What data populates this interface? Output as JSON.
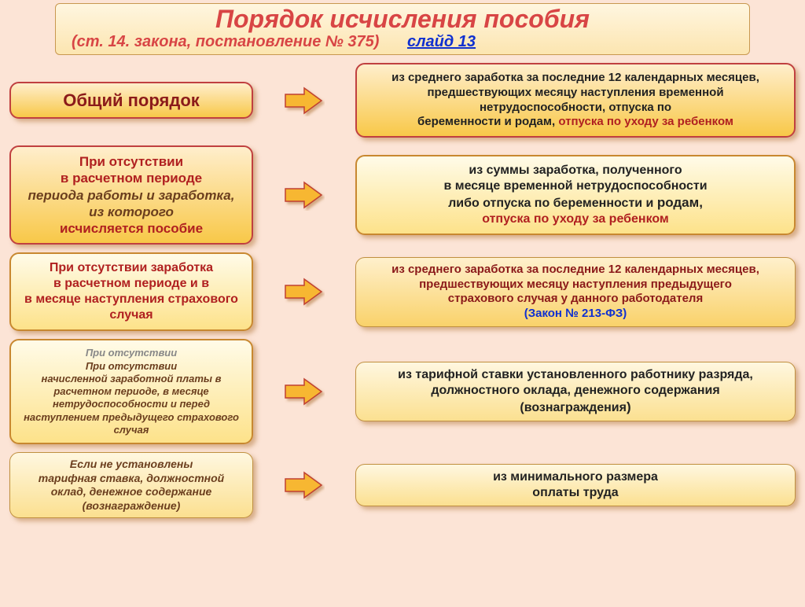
{
  "header": {
    "title": "Порядок исчисления пособия",
    "subtitle_left": "(ст. 14.  закона, постановление № 375)",
    "subtitle_link": "слайд 13",
    "title_color": "#d84545",
    "link_color": "#1030d0",
    "bg_from": "#fff6e0",
    "bg_to": "#fce5b0"
  },
  "arrow": {
    "fill": "#f7b733",
    "stroke": "#c04030",
    "shadow": "rgba(170,110,50,0.5)"
  },
  "rows": [
    {
      "left": {
        "style": "box-a",
        "fontsize": "fs22",
        "lines": [
          {
            "cls": "txt-darkred",
            "text": "Общий порядок"
          }
        ]
      },
      "right": {
        "style": "box-a",
        "fontsize": "fs15",
        "lines": [
          {
            "cls": "txt-black",
            "text": "из среднего заработка  за последние 12 календарных месяцев, предшествующих месяцу наступления временной нетрудоспособности, отпуска по "
          },
          {
            "cls": "",
            "text": "",
            "inline": [
              {
                "cls": "txt-black",
                "text": "беременности и родам, "
              },
              {
                "cls": "txt-red",
                "text": "отпуска по уходу за ребенком"
              }
            ]
          }
        ]
      }
    },
    {
      "left": {
        "style": "box-a",
        "fontsize": "fs17",
        "lines": [
          {
            "cls": "txt-red",
            "text": "При отсутствии"
          },
          {
            "cls": "txt-red",
            "text": "в расчетном периоде"
          },
          {
            "cls": "txt-brown",
            "text": "периода работы и  заработка,"
          },
          {
            "cls": "txt-brown",
            "text": "из которого"
          },
          {
            "cls": "txt-red",
            "text": "исчисляется пособие"
          }
        ]
      },
      "right": {
        "style": "box-b",
        "fontsize": "fs16",
        "lines": [
          {
            "cls": "txt-black",
            "text": "из суммы заработка, полученного"
          },
          {
            "cls": "txt-black",
            "text": "в месяце временной нетрудоспособности"
          },
          {
            "cls": "",
            "text": "",
            "inline": [
              {
                "cls": "txt-black",
                "text": "либо отпуска по беременности и "
              },
              {
                "cls": "txt-black fs17",
                "text": "родам,"
              }
            ]
          },
          {
            "cls": "txt-red",
            "text": "отпуска  по уходу за ребенком"
          }
        ]
      }
    },
    {
      "left": {
        "style": "box-b",
        "fontsize": "fs16",
        "lines": [
          {
            "cls": "txt-red",
            "text": "При отсутствии заработка"
          },
          {
            "cls": "txt-red",
            "text": "в расчетном периоде  и  в"
          },
          {
            "cls": "txt-red",
            "text": "в месяце наступления страхового случая"
          }
        ]
      },
      "right": {
        "style": "box-c",
        "fontsize": "fs15",
        "lines": [
          {
            "cls": "txt-darkred",
            "text": "из  среднего  заработка за последние 12 календарных месяцев,  предшествующих месяцу наступления предыдущего"
          },
          {
            "cls": "",
            "text": "",
            "inline": [
              {
                "cls": "txt-darkred",
                "text": "страхового случая у данного  работодателя"
              }
            ]
          },
          {
            "cls": "txt-blue",
            "text": "(Закон № 213-ФЗ)"
          }
        ]
      }
    },
    {
      "left": {
        "style": "box-b",
        "fontsize": "fs13",
        "lines": [
          {
            "cls": "txt-grey",
            "text": "При отсутствии"
          },
          {
            "cls": "txt-brown",
            "text": "При отсутствии"
          },
          {
            "cls": "txt-brown",
            "text": "начисленной заработной платы в расчетном  периоде, в месяце нетрудоспособности  и перед наступлением предыдущего страхового случая"
          }
        ]
      },
      "right": {
        "style": "box-d",
        "fontsize": "fs16",
        "lines": [
          {
            "cls": "txt-black",
            "text": "из  тарифной ставки установленного работнику разряда, должностного оклада, денежного содержания"
          },
          {
            "cls": "",
            "text": "",
            "inline": [
              {
                "cls": "txt-black",
                "text": "(вознаграждения"
              },
              {
                "cls": "txt-black fs17",
                "text": ")"
              }
            ]
          }
        ]
      }
    },
    {
      "left": {
        "style": "box-d",
        "fontsize": "fs14",
        "lines": [
          {
            "cls": "txt-brown",
            "text": "Если не установлены"
          },
          {
            "cls": "txt-brown",
            "text": "тарифная ставка, должностной оклад, денежное содержание (вознаграждение)"
          }
        ]
      },
      "right": {
        "style": "box-d",
        "fontsize": "fs16",
        "lines": [
          {
            "cls": "txt-black",
            "text": "из  минимального размера"
          },
          {
            "cls": "txt-black",
            "text": "оплаты труда"
          }
        ]
      }
    }
  ]
}
